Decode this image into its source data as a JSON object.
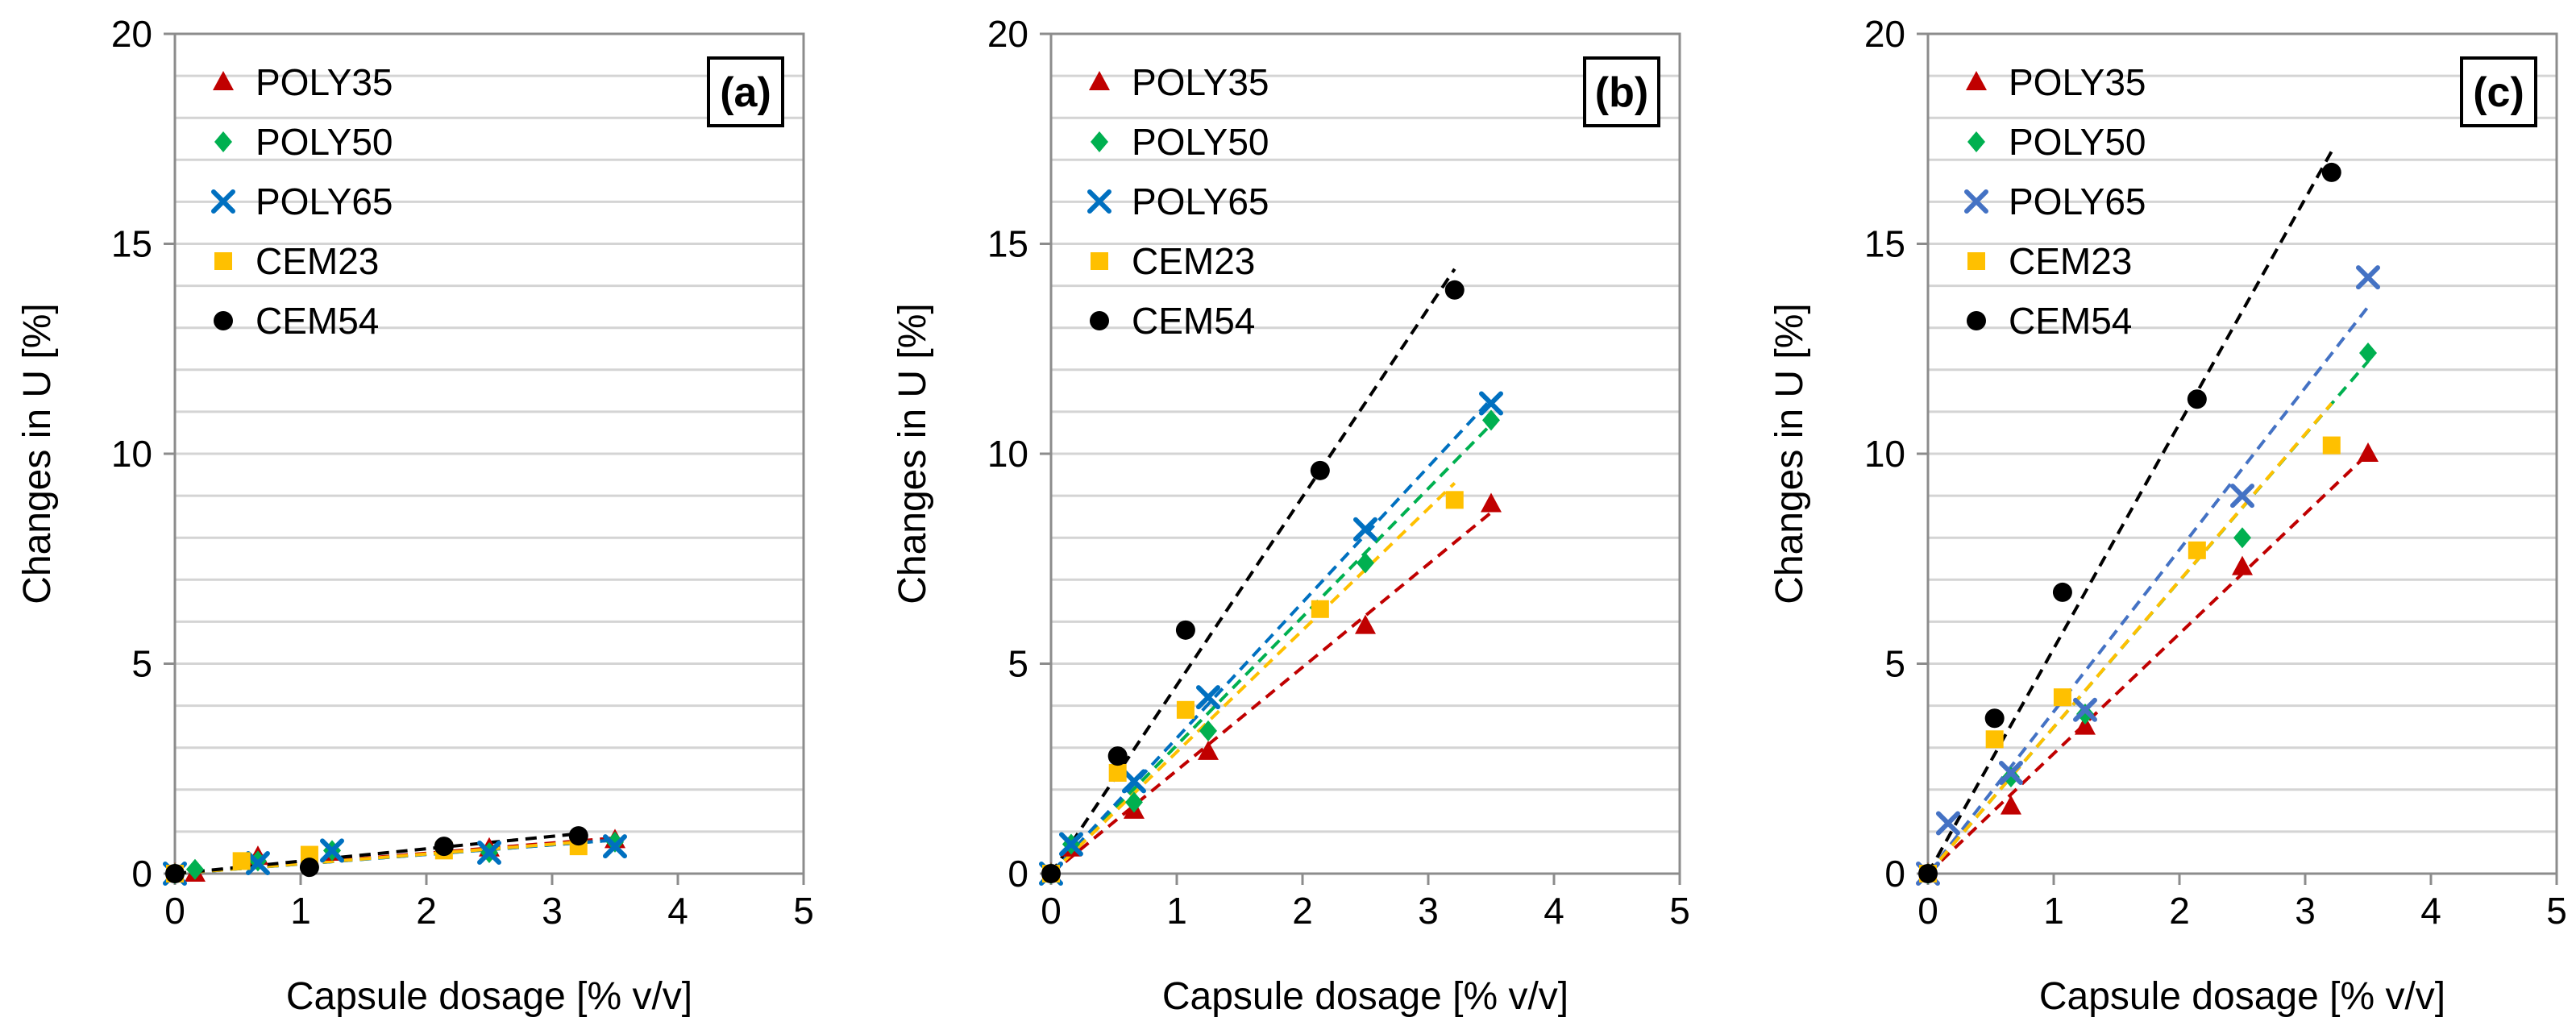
{
  "chart_data": [
    {
      "type": "scatter",
      "panel_label": "(a)",
      "xlabel": "Capsule dosage [% v/v]",
      "ylabel": "Changes in U [%]",
      "xlim": [
        0,
        5
      ],
      "ylim": [
        0,
        20
      ],
      "xticks": [
        "0",
        "1",
        "2",
        "3",
        "4",
        "5"
      ],
      "yticks": [
        "0",
        "5",
        "10",
        "15",
        "20"
      ],
      "grid": true,
      "legend_position": "top-left",
      "series": [
        {
          "name": "POLY35",
          "color": "#c00000",
          "marker": "triangle",
          "x": [
            0,
            0.16,
            0.66,
            1.25,
            2.5,
            3.5
          ],
          "y": [
            0,
            0,
            0.4,
            0.5,
            0.6,
            0.8
          ],
          "trend_x": [
            0,
            3.5
          ],
          "trend_y": [
            0,
            0.85
          ]
        },
        {
          "name": "POLY50",
          "color": "#00b050",
          "marker": "diamond",
          "x": [
            0,
            0.16,
            0.66,
            1.25,
            2.5,
            3.5
          ],
          "y": [
            0,
            0.1,
            0.3,
            0.55,
            0.5,
            0.75
          ],
          "trend_x": [
            0,
            3.5
          ],
          "trend_y": [
            0,
            0.8
          ]
        },
        {
          "name": "POLY65",
          "color": "#0070c0",
          "marker": "x",
          "x": [
            0,
            0.66,
            1.25,
            2.5,
            3.5
          ],
          "y": [
            0,
            0.25,
            0.55,
            0.5,
            0.65
          ],
          "trend_x": [
            0,
            3.5
          ],
          "trend_y": [
            0,
            0.8
          ]
        },
        {
          "name": "CEM23",
          "color": "#ffc000",
          "marker": "square",
          "x": [
            0,
            0.53,
            1.07,
            2.14,
            3.21
          ],
          "y": [
            0,
            0.3,
            0.45,
            0.55,
            0.65
          ],
          "trend_x": [
            0,
            3.21
          ],
          "trend_y": [
            0,
            0.75
          ]
        },
        {
          "name": "CEM54",
          "color": "#000000",
          "marker": "circle",
          "x": [
            0,
            1.07,
            2.14,
            3.21
          ],
          "y": [
            0,
            0.15,
            0.65,
            0.9
          ],
          "trend_x": [
            0,
            3.21
          ],
          "trend_y": [
            0,
            0.95
          ]
        }
      ]
    },
    {
      "type": "scatter",
      "panel_label": "(b)",
      "xlabel": "Capsule dosage [% v/v]",
      "ylabel": "Changes in U [%]",
      "xlim": [
        0,
        5
      ],
      "ylim": [
        0,
        20
      ],
      "xticks": [
        "0",
        "1",
        "2",
        "3",
        "4",
        "5"
      ],
      "yticks": [
        "0",
        "5",
        "10",
        "15",
        "20"
      ],
      "grid": true,
      "legend_position": "top-left",
      "series": [
        {
          "name": "POLY35",
          "color": "#c00000",
          "marker": "triangle",
          "x": [
            0,
            0.16,
            0.66,
            1.25,
            2.5,
            3.5
          ],
          "y": [
            0,
            0.6,
            1.5,
            2.9,
            5.9,
            8.8
          ],
          "trend_x": [
            0,
            3.5
          ],
          "trend_y": [
            0,
            8.6
          ]
        },
        {
          "name": "POLY50",
          "color": "#00b050",
          "marker": "diamond",
          "x": [
            0,
            0.16,
            0.66,
            1.25,
            2.5,
            3.5
          ],
          "y": [
            0,
            0.7,
            1.7,
            3.4,
            7.4,
            10.8
          ],
          "trend_x": [
            0,
            3.5
          ],
          "trend_y": [
            0,
            10.7
          ]
        },
        {
          "name": "POLY65",
          "color": "#0070c0",
          "marker": "x",
          "x": [
            0,
            0.16,
            0.66,
            1.25,
            2.5,
            3.5
          ],
          "y": [
            0,
            0.7,
            2.2,
            4.2,
            8.2,
            11.2
          ],
          "trend_x": [
            0,
            3.5
          ],
          "trend_y": [
            0,
            11.3
          ]
        },
        {
          "name": "CEM23",
          "color": "#ffc000",
          "marker": "square",
          "x": [
            0,
            0.53,
            1.07,
            2.14,
            3.21
          ],
          "y": [
            0,
            2.4,
            3.9,
            6.3,
            8.9
          ],
          "trend_x": [
            0,
            3.21
          ],
          "trend_y": [
            0,
            9.3
          ]
        },
        {
          "name": "CEM54",
          "color": "#000000",
          "marker": "circle",
          "x": [
            0,
            0.53,
            1.07,
            2.14,
            3.21
          ],
          "y": [
            0,
            2.8,
            5.8,
            9.6,
            13.9
          ],
          "trend_x": [
            0,
            3.21
          ],
          "trend_y": [
            0,
            14.4
          ]
        }
      ]
    },
    {
      "type": "scatter",
      "panel_label": "(c)",
      "xlabel": "Capsule dosage [% v/v]",
      "ylabel": "Changes in U [%]",
      "xlim": [
        0,
        5
      ],
      "ylim": [
        0,
        20
      ],
      "xticks": [
        "0",
        "1",
        "2",
        "3",
        "4",
        "5"
      ],
      "yticks": [
        "0",
        "5",
        "10",
        "15",
        "20"
      ],
      "grid": true,
      "legend_position": "top-left",
      "series": [
        {
          "name": "POLY35",
          "color": "#c00000",
          "marker": "triangle",
          "x": [
            0,
            0.66,
            1.25,
            2.5,
            3.5
          ],
          "y": [
            0,
            1.6,
            3.5,
            7.3,
            10.0
          ],
          "trend_x": [
            0,
            3.5
          ],
          "trend_y": [
            0,
            10.0
          ]
        },
        {
          "name": "POLY50",
          "color": "#00b050",
          "marker": "diamond",
          "x": [
            0,
            0.66,
            1.25,
            2.5,
            3.5
          ],
          "y": [
            0,
            2.3,
            3.8,
            8.0,
            12.4
          ],
          "trend_x": [
            0,
            3.5
          ],
          "trend_y": [
            0,
            12.2
          ]
        },
        {
          "name": "POLY65",
          "color": "#4472c4",
          "marker": "x",
          "x": [
            0,
            0.16,
            0.66,
            1.25,
            2.5,
            3.5
          ],
          "y": [
            0,
            1.2,
            2.4,
            3.9,
            9.0,
            14.2
          ],
          "trend_x": [
            0,
            3.5
          ],
          "trend_y": [
            0,
            13.5
          ]
        },
        {
          "name": "CEM23",
          "color": "#ffc000",
          "marker": "square",
          "x": [
            0,
            0.53,
            1.07,
            2.14,
            3.21
          ],
          "y": [
            0,
            3.2,
            4.2,
            7.7,
            10.2
          ],
          "trend_x": [
            0,
            3.21
          ],
          "trend_y": [
            0,
            11.2
          ]
        },
        {
          "name": "CEM54",
          "color": "#000000",
          "marker": "circle",
          "x": [
            0,
            0.53,
            1.07,
            2.14,
            3.21
          ],
          "y": [
            0,
            3.7,
            6.7,
            11.3,
            16.7
          ],
          "trend_x": [
            0,
            3.21
          ],
          "trend_y": [
            0,
            17.2
          ]
        }
      ]
    }
  ]
}
